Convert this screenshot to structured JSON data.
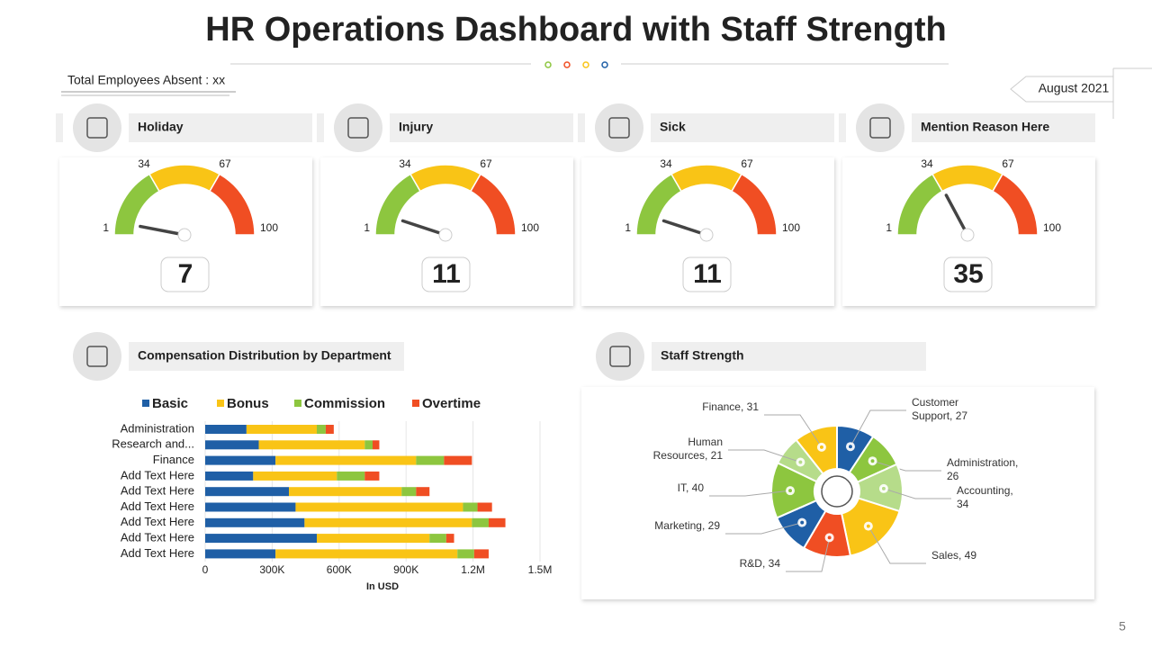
{
  "title": "HR Operations Dashboard with Staff Strength",
  "absent_note": "Total Employees Absent : xx",
  "date": "August 2021",
  "page_number": "5",
  "chart_data": [
    {
      "type": "gauge",
      "title": "Holiday",
      "value": 7,
      "range": [
        1,
        100
      ],
      "ticks": [
        1,
        34,
        67,
        100
      ],
      "colors": [
        "#8dc63f",
        "#f9c416",
        "#f04e23"
      ]
    },
    {
      "type": "gauge",
      "title": "Injury",
      "value": 11,
      "range": [
        1,
        100
      ],
      "ticks": [
        1,
        34,
        67,
        100
      ],
      "colors": [
        "#8dc63f",
        "#f9c416",
        "#f04e23"
      ]
    },
    {
      "type": "gauge",
      "title": "Sick",
      "value": 11,
      "range": [
        1,
        100
      ],
      "ticks": [
        1,
        34,
        67,
        100
      ],
      "colors": [
        "#8dc63f",
        "#f9c416",
        "#f04e23"
      ]
    },
    {
      "type": "gauge",
      "title": "Mention Reason Here",
      "value": 35,
      "range": [
        1,
        100
      ],
      "ticks": [
        1,
        34,
        67,
        100
      ],
      "colors": [
        "#8dc63f",
        "#f9c416",
        "#f04e23"
      ]
    },
    {
      "type": "bar",
      "orientation": "horizontal",
      "stacked": true,
      "title": "Compensation Distribution by Department",
      "categories": [
        "Administration",
        "Research and...",
        "Finance",
        "Add Text Here",
        "Add Text Here",
        "Add Text Here",
        "Add Text Here",
        "Add Text Here",
        "Add Text Here"
      ],
      "series": [
        {
          "name": "Basic",
          "color": "#1f5fa6",
          "values": [
            185000,
            240000,
            315000,
            215000,
            375000,
            405000,
            445000,
            500000,
            315000
          ]
        },
        {
          "name": "Bonus",
          "color": "#f9c416",
          "values": [
            315000,
            475000,
            630000,
            375000,
            505000,
            750000,
            750000,
            505000,
            815000
          ]
        },
        {
          "name": "Commission",
          "color": "#8dc63f",
          "values": [
            40000,
            35000,
            125000,
            125000,
            65000,
            65000,
            75000,
            75000,
            75000
          ]
        },
        {
          "name": "Overtime",
          "color": "#f04e23",
          "values": [
            36000,
            30000,
            125000,
            65000,
            60000,
            65000,
            75000,
            35000,
            65000
          ]
        }
      ],
      "xlim": [
        0,
        1500000
      ],
      "xticks": [
        0,
        {
          "value": 300000,
          "label": "300K"
        },
        {
          "value": 600000,
          "label": "600K"
        },
        {
          "value": 900000,
          "label": "900K"
        },
        {
          "value": 1200000,
          "label": "1.2M"
        },
        {
          "value": 1500000,
          "label": "1.5M"
        }
      ],
      "xlabel": "In USD",
      "legend": "top",
      "grid": true
    },
    {
      "type": "pie",
      "donut": true,
      "title": "Staff Strength",
      "categories": [
        "Customer Support, 27",
        "Administration, 26",
        "Accounting, 34",
        "Sales, 49",
        "R&D, 34",
        "Marketing, 29",
        "IT, 40",
        "Human Resources, 21",
        "Finance, 31"
      ],
      "values": [
        27,
        26,
        34,
        49,
        34,
        29,
        40,
        21,
        31
      ],
      "colors": [
        "#1f5fa6",
        "#8dc63f",
        "#b6dc8a",
        "#f9c416",
        "#f04e23",
        "#1f5fa6",
        "#8dc63f",
        "#b6dc8a",
        "#f9c416"
      ]
    }
  ]
}
